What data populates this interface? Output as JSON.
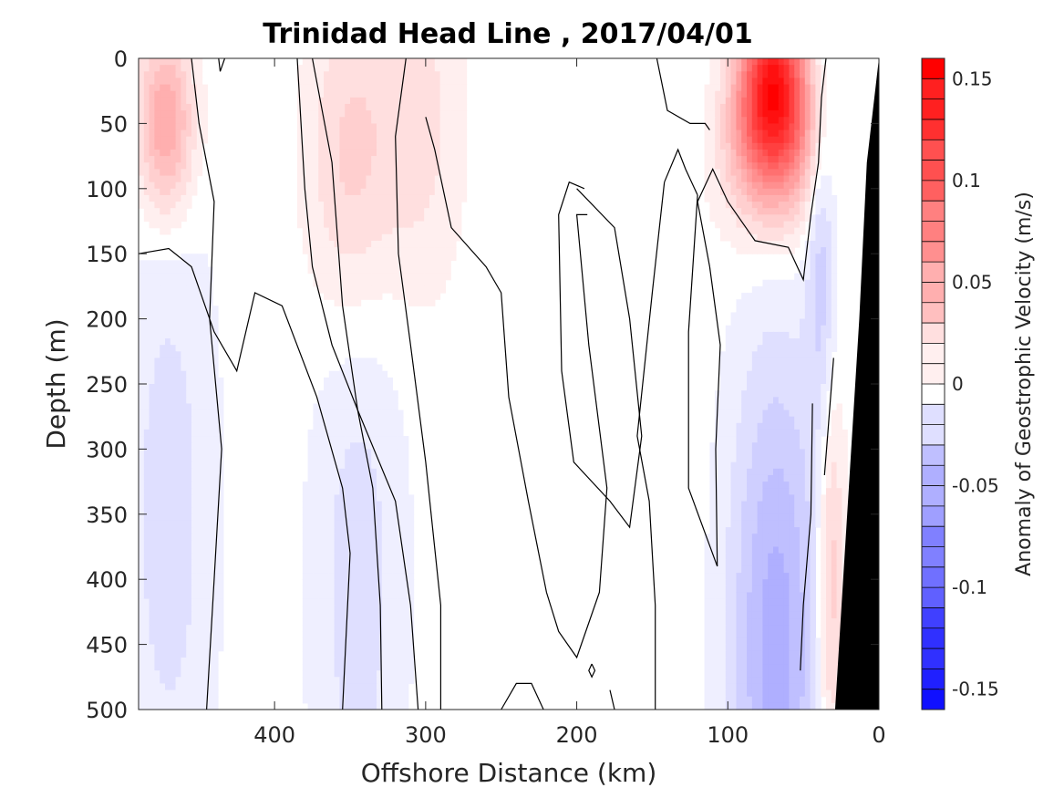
{
  "chart_data": {
    "type": "heatmap",
    "title": "Trinidad Head Line , 2017/04/01",
    "xlabel": "Offshore Distance (km)",
    "ylabel": "Depth (m)",
    "xlim": [
      490,
      0
    ],
    "ylim": [
      0,
      500
    ],
    "x_reversed": true,
    "y_reversed": true,
    "x_ticks": [
      400,
      300,
      200,
      100,
      0
    ],
    "x_tick_labels": [
      "400",
      "300",
      "200",
      "100",
      "0"
    ],
    "y_ticks": [
      0,
      50,
      100,
      150,
      200,
      250,
      300,
      350,
      400,
      450,
      500
    ],
    "y_tick_labels": [
      "0",
      "50",
      "100",
      "150",
      "200",
      "250",
      "300",
      "350",
      "400",
      "450",
      "500"
    ],
    "grid": false,
    "colorbar": {
      "label": "Anomaly of Geostrophic Velocity (m/s)",
      "range": [
        -0.16,
        0.16
      ],
      "step": 0.01,
      "ticks": [
        0.15,
        0.1,
        0.05,
        0,
        -0.05,
        -0.1,
        -0.15
      ],
      "tick_labels": [
        "0.15",
        "0.1",
        "0.05",
        "0",
        "-0.05",
        "-0.1",
        "-0.15"
      ],
      "positive_color": "#ff0000",
      "negative_color": "#0000ff",
      "zero_color": "#ffffff"
    },
    "bathymetry_color": "#000000",
    "contour_color": "#000000",
    "features": [
      {
        "name": "nearshore-positive-jet",
        "x": 70,
        "depth": 30,
        "peak_value": 0.16
      },
      {
        "name": "offshore-positive-core",
        "x": 472,
        "depth": 50,
        "peak_value": 0.06
      },
      {
        "name": "positive-band-350km",
        "x": 350,
        "depth": 80,
        "peak_value": 0.03
      },
      {
        "name": "positive-band-300km",
        "x": 305,
        "depth": 50,
        "peak_value": 0.02
      },
      {
        "name": "deep-negative-core",
        "x": 68,
        "depth": 450,
        "peak_value": -0.05
      },
      {
        "name": "mid-negative-column",
        "x": 345,
        "depth": 400,
        "peak_value": -0.02
      },
      {
        "name": "offshore-negative-column",
        "x": 470,
        "depth": 350,
        "peak_value": -0.02
      },
      {
        "name": "negative-strip-near-slope",
        "x": 38,
        "depth": 150,
        "peak_value": -0.03
      },
      {
        "name": "positive-strip-near-slope",
        "x": 32,
        "depth": 400,
        "peak_value": 0.04
      }
    ]
  }
}
